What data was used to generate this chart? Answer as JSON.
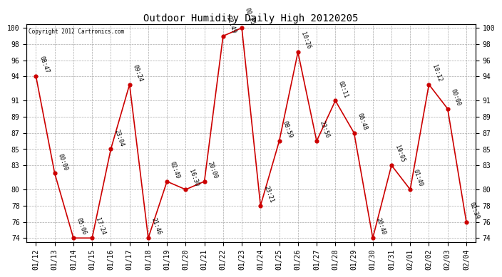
{
  "title": "Outdoor Humidity Daily High 20120205",
  "copyright": "Copyright 2012 Cartronics.com",
  "x_labels": [
    "01/12",
    "01/13",
    "01/14",
    "01/15",
    "01/16",
    "01/17",
    "01/18",
    "01/19",
    "01/20",
    "01/21",
    "01/22",
    "01/23",
    "01/24",
    "01/25",
    "01/26",
    "01/27",
    "01/28",
    "01/29",
    "01/30",
    "01/31",
    "02/01",
    "02/02",
    "02/03",
    "02/04"
  ],
  "y_values": [
    94,
    82,
    74,
    74,
    85,
    93,
    74,
    81,
    80,
    81,
    99,
    100,
    78,
    86,
    97,
    86,
    91,
    87,
    74,
    83,
    80,
    93,
    90,
    76
  ],
  "time_labels": [
    "08:47",
    "00:00",
    "05:06",
    "17:24",
    "23:04",
    "09:24",
    "21:46",
    "02:49",
    "16:30",
    "20:00",
    "22:49",
    "00:25",
    "23:21",
    "08:59",
    "10:26",
    "23:56",
    "02:11",
    "06:48",
    "20:40",
    "19:05",
    "01:40",
    "10:12",
    "00:00",
    "02:39"
  ],
  "ylim_min": 73.5,
  "ylim_max": 100.5,
  "yticks": [
    74,
    76,
    78,
    80,
    83,
    85,
    87,
    89,
    91,
    94,
    96,
    98,
    100
  ],
  "line_color": "#cc0000",
  "marker_color": "#cc0000",
  "bg_color": "#ffffff",
  "grid_color": "#aaaaaa",
  "title_fontsize": 10,
  "label_fontsize": 6,
  "tick_fontsize": 7,
  "label_rotation": -70
}
